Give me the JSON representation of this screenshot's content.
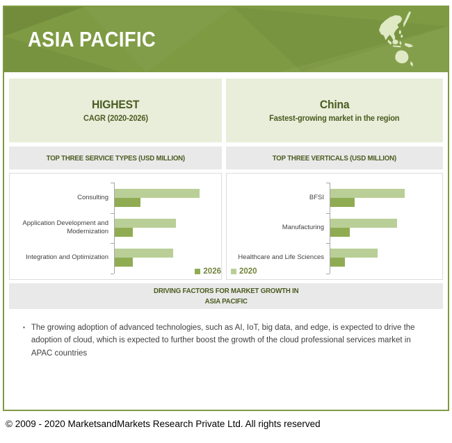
{
  "header": {
    "title": "ASIA PACIFIC"
  },
  "highlight_boxes": [
    {
      "line1": "HIGHEST",
      "line2": "CAGR (2020-2026)"
    },
    {
      "line1": "China",
      "line2": "Fastest-growing market in the region"
    }
  ],
  "section_headers": [
    "TOP THREE SERVICE TYPES (USD MILLION)",
    "TOP THREE VERTICALS (USD MILLION)"
  ],
  "chart_data": [
    {
      "type": "bar",
      "orientation": "horizontal",
      "title": "TOP THREE SERVICE TYPES (USD MILLION)",
      "categories": [
        "Consulting",
        "Application Development and Modernization",
        "Integration and Optimization"
      ],
      "series": [
        {
          "name": "2026",
          "color": "#90AC53",
          "values": [
            31,
            22,
            22
          ]
        },
        {
          "name": "2020",
          "color": "#B9CF97",
          "values": [
            100,
            72,
            69
          ]
        }
      ],
      "bar_order_top_to_bottom": [
        "2020",
        "2026"
      ],
      "xlim": [
        0,
        125
      ],
      "grid": false,
      "legend_position": "bottom",
      "note": "No numeric axis labels in source; values are relative estimates (longest bar = 100)"
    },
    {
      "type": "bar",
      "orientation": "horizontal",
      "title": "TOP THREE VERTICALS (USD MILLION)",
      "categories": [
        "BFSI",
        "Manufacturing",
        "Healthcare and Life Sciences"
      ],
      "series": [
        {
          "name": "2026",
          "color": "#90AC53",
          "values": [
            33,
            27,
            20
          ]
        },
        {
          "name": "2020",
          "color": "#B9CF97",
          "values": [
            100,
            90,
            64
          ]
        }
      ],
      "bar_order_top_to_bottom": [
        "2020",
        "2026"
      ],
      "xlim": [
        0,
        150
      ],
      "grid": false,
      "legend_position": "bottom",
      "note": "No numeric axis labels in source; values are relative estimates (longest bar = 100)"
    }
  ],
  "legend": {
    "items": [
      {
        "label": "2026",
        "color": "#90AC53"
      },
      {
        "label": "2020",
        "color": "#B9CF97"
      }
    ]
  },
  "driving_factors": {
    "title_line1": "DRIVING FACTORS FOR MARKET GROWTH IN",
    "title_line2": "ASIA PACIFIC",
    "bullets": [
      "The growing adoption of advanced technologies, such as AI, IoT, big data, and edge, is expected to drive the adoption of cloud, which is expected to further boost the growth of the cloud professional services market in APAC countries"
    ]
  },
  "footer": {
    "copyright": "© 2009 - 2020 MarketsandMarkets Research Private Ltd. All rights reserved"
  },
  "colors": {
    "banner_olive": "#7E9A43",
    "map_fill": "#DFE9C4",
    "highlight_box_bg": "#E9EEDB",
    "section_bar_bg": "#E9E9E9",
    "dark_green_text": "#4B5B20",
    "bar_2026": "#90AC53",
    "bar_2020": "#B9CF97",
    "axis_gray": "#A6A6A6",
    "body_text": "#3F3F3F"
  }
}
